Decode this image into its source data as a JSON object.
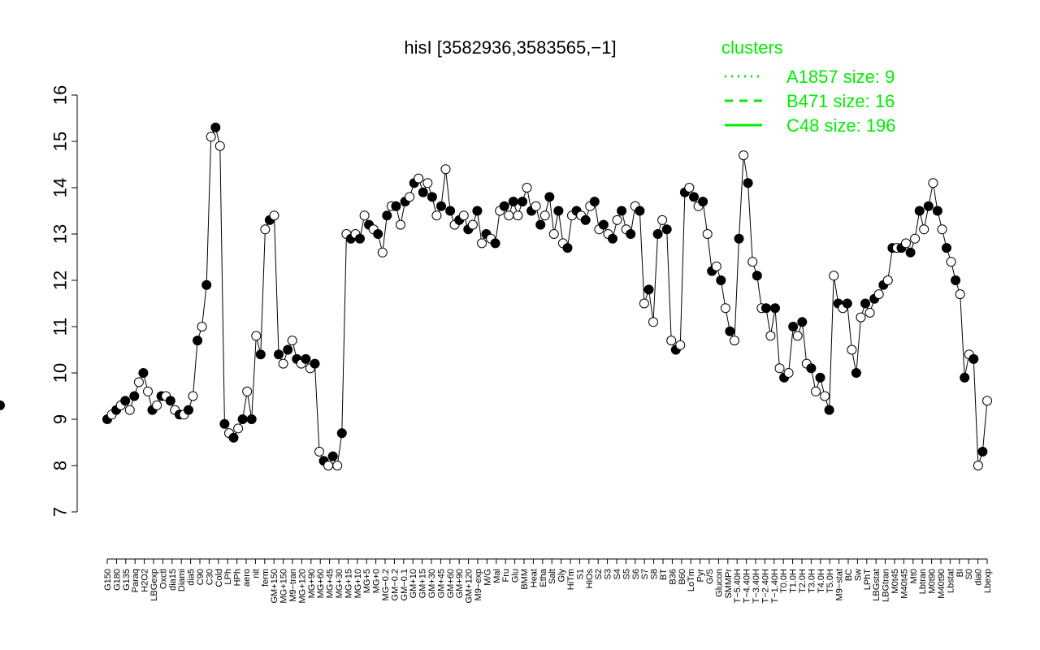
{
  "chart_data": {
    "type": "line",
    "title": "hisI [3582936,3583565,−1]",
    "xlabel": "",
    "ylabel": "",
    "ylim": [
      7,
      16
    ],
    "yticks": [
      7,
      8,
      9,
      10,
      11,
      12,
      13,
      14,
      15,
      16
    ],
    "grid": false,
    "legend_position": "top-right",
    "legend": {
      "title": "clusters",
      "entries": [
        {
          "label": "A1857 size: 9",
          "style": "dotted"
        },
        {
          "label": "B471 size: 16",
          "style": "dashed"
        },
        {
          "label": "C48 size: 196",
          "style": "solid"
        }
      ]
    },
    "colors": {
      "series_line": "#00ee00",
      "text": "#000000",
      "points_filled": "#000000",
      "points_open": "#ffffff"
    },
    "x_tick_labels": [
      "G150",
      "G180",
      "G135",
      "Paraq",
      "H2O2",
      "LBGexp",
      "Oxctl",
      "dia15",
      "Diami",
      "dia5",
      "C90",
      "C30",
      "Cold",
      "LPh",
      "HPh",
      "aero",
      "nit",
      "ferm",
      "GM+150",
      "MG+150",
      "M9−tran",
      "MG+120",
      "MG+90",
      "MG+60",
      "MG+45",
      "MG+30",
      "MG+15",
      "MG+10",
      "MG+5",
      "MG+0",
      "MG−0.2",
      "GM−0.2",
      "GM−0.1",
      "GM+10",
      "GM+15",
      "GM+30",
      "GM+45",
      "GM+60",
      "GM+90",
      "GM+120",
      "M9−exp",
      "M/G",
      "Mal",
      "Fru",
      "Glu",
      "BMM",
      "Heat",
      "Etha",
      "Salt",
      "Gly",
      "HiTm",
      "S1",
      "HiOs",
      "S2",
      "S3",
      "S4",
      "S5",
      "S6",
      "S7",
      "S8",
      "BT",
      "B36",
      "B60",
      "LoTm",
      "Pyr",
      "G/S",
      "Glucon",
      "SMMPr",
      "T−5.40H",
      "T−4.40H",
      "T−3.40H",
      "T−2.40H",
      "T−1.40H",
      "T0.0H",
      "T1.0H",
      "T2.0H",
      "T3.0H",
      "T4.0H",
      "T5.0H",
      "M9−stat",
      "BC",
      "Sw",
      "LPhT",
      "LBGstat",
      "LBGtran",
      "M0t45",
      "M40t45",
      "Mt0",
      "Lbtran",
      "M0t90",
      "M40t90",
      "Lbstat",
      "BI",
      "S0",
      "dia0",
      "Lbexp"
    ],
    "points_x": [
      1,
      2,
      3,
      4,
      5,
      6,
      7,
      8,
      9,
      10,
      11,
      12,
      13,
      14,
      15,
      16,
      17,
      18,
      19,
      20,
      21,
      22,
      23,
      24,
      25,
      26,
      27,
      28,
      29,
      30,
      31,
      32,
      33,
      34,
      35,
      36,
      37,
      38,
      39,
      40,
      41,
      42,
      43,
      44,
      45,
      46,
      47,
      48,
      49,
      50,
      51,
      52,
      53,
      54,
      55,
      56,
      57,
      58,
      59,
      60,
      61,
      62,
      63,
      64,
      65,
      66,
      67,
      68,
      69,
      70,
      71,
      72,
      73,
      74,
      75,
      76,
      77,
      78,
      79,
      80,
      81,
      82,
      83,
      84,
      85,
      86,
      87,
      88,
      89,
      90,
      91,
      92,
      93,
      94,
      95,
      96,
      97,
      98,
      99,
      100,
      101,
      102,
      103,
      104,
      105,
      106,
      107,
      108,
      109,
      110,
      111,
      112,
      113,
      114,
      115,
      116,
      117,
      118,
      119,
      120,
      121,
      122,
      123,
      124,
      125,
      126,
      127,
      128,
      129,
      130,
      131,
      132,
      133,
      134,
      135,
      136,
      137,
      138,
      139,
      140,
      141,
      142,
      143,
      144,
      145,
      146,
      147,
      148,
      149,
      150,
      151,
      152,
      153,
      154,
      155,
      156,
      157,
      158,
      159,
      160,
      161,
      162,
      163,
      164,
      165,
      166,
      167,
      168,
      169,
      170,
      171,
      172,
      173,
      174,
      175,
      176,
      177,
      178,
      179,
      180,
      181,
      182,
      183,
      184,
      185,
      186,
      187,
      188,
      189,
      190,
      191,
      192,
      193,
      194,
      195,
      196
    ],
    "series": [
      {
        "name": "C48 size: 196",
        "values": [
          9.0,
          9.1,
          9.2,
          9.3,
          9.4,
          9.2,
          9.5,
          9.8,
          10.0,
          9.6,
          9.2,
          9.3,
          9.5,
          9.5,
          9.4,
          9.2,
          9.1,
          9.1,
          9.2,
          9.5,
          10.7,
          11.0,
          11.9,
          15.1,
          15.3,
          14.9,
          8.9,
          8.7,
          8.6,
          8.8,
          9.0,
          9.6,
          9.0,
          10.8,
          10.4,
          13.1,
          13.3,
          13.4,
          10.4,
          10.2,
          10.5,
          10.7,
          10.3,
          10.2,
          10.3,
          10.1,
          10.2,
          8.3,
          8.1,
          8.0,
          8.2,
          8.0,
          8.7,
          13.0,
          12.9,
          13.0,
          12.9,
          13.4,
          13.2,
          13.1,
          13.0,
          12.6,
          13.4,
          13.6,
          13.6,
          13.2,
          13.7,
          13.8,
          14.1,
          14.2,
          13.9,
          14.1,
          13.8,
          13.4,
          13.6,
          14.4,
          13.5,
          13.2,
          13.3,
          13.4,
          13.1,
          13.2,
          13.5,
          12.8,
          13.0,
          12.9,
          12.8,
          13.5,
          13.6,
          13.4,
          13.7,
          13.4,
          13.7,
          14.0,
          13.5,
          13.6,
          13.2,
          13.4,
          13.8,
          13.0,
          13.5,
          12.8,
          12.7,
          13.4,
          13.5,
          13.4,
          13.3,
          13.6,
          13.7,
          13.1,
          13.2,
          13.0,
          12.9,
          13.3,
          13.5,
          13.1,
          13.0,
          13.6,
          13.5,
          11.5,
          11.8,
          11.1,
          13.0,
          13.3,
          13.1,
          10.7,
          10.5,
          10.6,
          13.9,
          14.0,
          13.8,
          13.6,
          13.7,
          13.0,
          12.2,
          12.3,
          12.0,
          11.4,
          10.9,
          10.7,
          12.9,
          14.7,
          14.1,
          12.4,
          12.1,
          11.4,
          11.4,
          10.8,
          11.4,
          10.1,
          9.9,
          10.0,
          11.0,
          10.8,
          11.1,
          10.2,
          10.1,
          9.6,
          9.9,
          9.5,
          9.2,
          12.1,
          11.5,
          11.4,
          11.5,
          10.5,
          10.0,
          11.2,
          11.5,
          11.3,
          11.6,
          11.7,
          11.9,
          12.0,
          12.7,
          12.7,
          12.7,
          12.8,
          12.6,
          12.9,
          13.5,
          13.1,
          13.6,
          14.1,
          13.5,
          13.1,
          12.7,
          12.4,
          12.0,
          11.7,
          9.9,
          10.4,
          10.3,
          8.0,
          8.3,
          9.4,
          9.3
        ],
        "style": "solid"
      }
    ]
  }
}
